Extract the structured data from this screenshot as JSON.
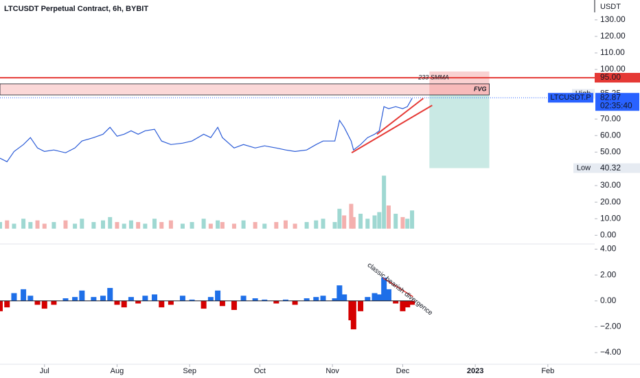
{
  "chart_data": [
    {
      "type": "line",
      "title": "LTCUSDT Perpetual Contract, 6h, BYBIT",
      "unit": "USDT",
      "color": "#2a5bd7",
      "xlim": [
        -19,
        235
      ],
      "ylim": [
        36,
        142
      ],
      "yticks": [
        {
          "value": 130,
          "label": "130.00"
        },
        {
          "value": 120,
          "label": "120.00"
        },
        {
          "value": 110,
          "label": "110.00"
        },
        {
          "value": 100,
          "label": "100.00"
        },
        {
          "value": 70,
          "label": "70.00"
        },
        {
          "value": 60,
          "label": "60.00"
        },
        {
          "value": 50,
          "label": "50.00"
        }
      ],
      "x": [
        -19,
        -16,
        -13,
        -9,
        -6,
        -3,
        0,
        4,
        9,
        13,
        16,
        21,
        25,
        28,
        31,
        34,
        37,
        40,
        43,
        47,
        50,
        54,
        59,
        63,
        68,
        71,
        74,
        76,
        81,
        85,
        90,
        94,
        99,
        103,
        107,
        112,
        116,
        119,
        124,
        126,
        128,
        131,
        132,
        135,
        138,
        141,
        143,
        145,
        147,
        150,
        153,
        155,
        157
      ],
      "values": [
        46.3,
        44.2,
        50.4,
        54.6,
        58.8,
        52.5,
        50.4,
        51.3,
        49.6,
        52.5,
        56.7,
        58.8,
        60.8,
        65.0,
        59.6,
        60.8,
        62.9,
        60.8,
        62.9,
        63.8,
        56.7,
        54.6,
        55.4,
        56.7,
        60.8,
        58.8,
        65.0,
        58.8,
        52.5,
        54.6,
        52.5,
        53.8,
        52.5,
        51.3,
        50.4,
        51.3,
        54.6,
        56.7,
        56.7,
        69.2,
        65.0,
        56.7,
        51.3,
        54.6,
        58.8,
        60.8,
        62.9,
        77.5,
        76.3,
        77.5,
        76.3,
        77.5,
        82.5
      ],
      "annotations": {
        "smma": {
          "text": "233 SMMA",
          "value": 95,
          "label": "95.00",
          "color": "#e53935"
        },
        "fvg": {
          "text": "FVG",
          "x": [
            -19,
            190
          ],
          "ylim": [
            84.6,
            91.3
          ]
        },
        "stop_box": {
          "x": [
            164.4,
            190
          ],
          "ylim": [
            84.6,
            98.75
          ],
          "color": "#f7c6c6"
        },
        "target_box": {
          "x": [
            164.4,
            190
          ],
          "ylim": [
            40.32,
            84.6
          ],
          "color": "#c9e9e4"
        },
        "high": {
          "text": "High",
          "value": 85.25,
          "label": "85.25"
        },
        "low": {
          "text": "Low",
          "value": 40.32,
          "label": "40.32"
        },
        "last": {
          "text": "LTCUSDT.P",
          "value": 82.87,
          "label": "82.87",
          "countdown": "02:35:40",
          "color": "#2962ff"
        },
        "trendlines": [
          {
            "x": [
              131.2,
              165.6
            ],
            "y": [
              49.6,
              78.3
            ]
          },
          {
            "x": [
              142,
              161.8
            ],
            "y": [
              60.8,
              82.5
            ]
          }
        ]
      }
    },
    {
      "type": "bar",
      "xlim": [
        -19,
        235
      ],
      "ylim": [
        -4,
        35
      ],
      "up_color": "#9fd8d2",
      "down_color": "#f4b0ae",
      "yticks": [
        {
          "value": 30,
          "label": "30.00"
        },
        {
          "value": 20,
          "label": "20.00"
        },
        {
          "value": 10,
          "label": "10.00"
        },
        {
          "value": 0,
          "label": "0.00"
        }
      ],
      "x": [
        -19,
        -16,
        -13,
        -9,
        -6,
        -3,
        0,
        4,
        9,
        13,
        16,
        21,
        25,
        28,
        31,
        34,
        37,
        40,
        43,
        47,
        50,
        54,
        59,
        63,
        68,
        71,
        74,
        76,
        81,
        85,
        90,
        94,
        99,
        103,
        107,
        112,
        116,
        119,
        124,
        126,
        128,
        131,
        132,
        135,
        138,
        141,
        143,
        145,
        147,
        150,
        153,
        155,
        157
      ],
      "values": [
        4,
        5,
        3,
        6,
        4,
        5,
        3,
        4,
        5,
        3,
        6,
        4,
        5,
        7,
        4,
        3,
        5,
        4,
        3,
        6,
        4,
        5,
        3,
        4,
        6,
        3,
        5,
        4,
        3,
        5,
        4,
        3,
        4,
        5,
        3,
        4,
        5,
        6,
        4,
        12,
        8,
        15,
        7,
        9,
        6,
        8,
        10,
        32,
        14,
        9,
        7,
        6,
        11
      ]
    },
    {
      "type": "bar",
      "xlim": [
        -19,
        235
      ],
      "ylim": [
        -4.9,
        4.4
      ],
      "up_color": "#1e6fe8",
      "down_color": "#d50000",
      "yticks": [
        {
          "value": 4,
          "label": "4.00"
        },
        {
          "value": 2,
          "label": "2.00"
        },
        {
          "value": 0,
          "label": "0.00"
        },
        {
          "value": -2,
          "label": "−2.00"
        },
        {
          "value": -4,
          "label": "−4.00"
        }
      ],
      "xticks": [
        {
          "value": 0,
          "label": "Jul"
        },
        {
          "value": 31,
          "label": "Aug"
        },
        {
          "value": 62,
          "label": "Sep"
        },
        {
          "value": 92,
          "label": "Oct"
        },
        {
          "value": 123,
          "label": "Nov"
        },
        {
          "value": 153,
          "label": "Dec"
        },
        {
          "value": 184,
          "label": "2023"
        },
        {
          "value": 215,
          "label": "Feb"
        }
      ],
      "x": [
        -19,
        -16,
        -13,
        -9,
        -6,
        -3,
        0,
        4,
        9,
        13,
        16,
        21,
        25,
        28,
        31,
        34,
        37,
        40,
        43,
        47,
        50,
        54,
        59,
        63,
        68,
        71,
        74,
        76,
        81,
        85,
        90,
        94,
        99,
        103,
        107,
        112,
        116,
        119,
        124,
        126,
        128,
        131,
        132,
        135,
        138,
        141,
        143,
        145,
        147,
        150,
        153,
        155,
        157
      ],
      "values": [
        -0.8,
        -0.5,
        0.6,
        0.9,
        0.4,
        -0.3,
        -0.6,
        -0.3,
        0.2,
        0.3,
        0.8,
        0.3,
        0.4,
        1.0,
        -0.3,
        -0.5,
        0.3,
        -0.2,
        0.4,
        0.5,
        -0.5,
        -0.3,
        0.4,
        0.1,
        -0.6,
        0.3,
        0.8,
        -0.4,
        -0.7,
        0.4,
        0.2,
        0.1,
        -0.2,
        0.1,
        -0.3,
        0.2,
        0.3,
        0.4,
        0.2,
        1.2,
        0.5,
        -1.5,
        -2.2,
        -0.8,
        0.3,
        0.6,
        0.5,
        1.8,
        0.9,
        -0.2,
        -0.8,
        -0.5,
        -0.3
      ],
      "annotation": {
        "text": "classic bearish divergence",
        "x": [
          144.7,
          157.4
        ],
        "y": [
          1.76,
          0.32
        ]
      }
    }
  ]
}
